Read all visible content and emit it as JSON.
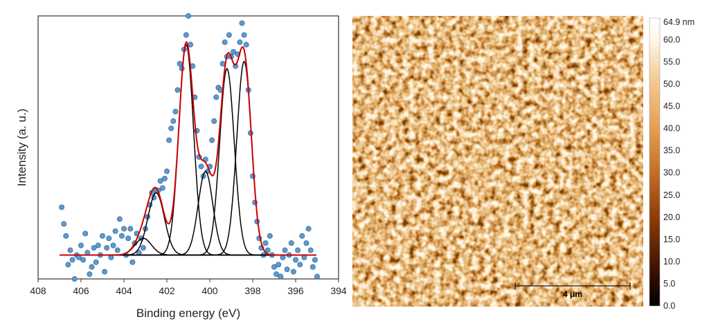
{
  "colors": {
    "raw_points_fill": "#5b9bd5",
    "raw_points_stroke": "#2e5f8a",
    "envelope": "#cc0000",
    "components": "#000000",
    "afm_base": "#b8641e"
  },
  "chart_data": [
    {
      "type": "scatter",
      "xlabel": "Binding energy (eV)",
      "ylabel": "Intensity (a. u.)",
      "xlim": [
        408,
        394
      ],
      "x_reversed": true,
      "ylim": [
        0,
        1.1
      ],
      "y_ticks_shown": false,
      "x_ticks": [
        "408",
        "406",
        "404",
        "402",
        "400",
        "398",
        "396",
        "394"
      ],
      "x_tick_values": [
        408,
        406,
        404,
        402,
        400,
        398,
        396,
        394
      ],
      "baseline": 0.1,
      "components": [
        {
          "center": 403.1,
          "height": 0.07,
          "fwhm": 0.9
        },
        {
          "center": 402.5,
          "height": 0.26,
          "fwhm": 0.9
        },
        {
          "center": 401.1,
          "height": 0.88,
          "fwhm": 0.8
        },
        {
          "center": 400.2,
          "height": 0.35,
          "fwhm": 0.8
        },
        {
          "center": 399.2,
          "height": 0.78,
          "fwhm": 0.8
        },
        {
          "center": 398.4,
          "height": 0.81,
          "fwhm": 0.8
        }
      ],
      "series": [
        {
          "values": [
            [
              406.9,
              0.3
            ],
            [
              406.8,
              0.23
            ],
            [
              406.7,
              0.18
            ],
            [
              406.6,
              0.06
            ],
            [
              406.5,
              0.12
            ],
            [
              406.4,
              0.08
            ],
            [
              406.3,
              0.0
            ],
            [
              406.2,
              0.1
            ],
            [
              406.1,
              0.09
            ],
            [
              406.0,
              0.14
            ],
            [
              405.9,
              0.08
            ],
            [
              405.8,
              0.19
            ],
            [
              405.7,
              0.11
            ],
            [
              405.6,
              0.02
            ],
            [
              405.5,
              0.05
            ],
            [
              405.4,
              0.13
            ],
            [
              405.3,
              0.07
            ],
            [
              405.2,
              0.14
            ],
            [
              405.1,
              0.1
            ],
            [
              405.0,
              0.18
            ],
            [
              404.9,
              0.03
            ],
            [
              404.8,
              0.13
            ],
            [
              404.7,
              0.17
            ],
            [
              404.6,
              0.09
            ],
            [
              404.5,
              0.14
            ],
            [
              404.4,
              0.2
            ],
            [
              404.3,
              0.12
            ],
            [
              404.2,
              0.25
            ],
            [
              404.1,
              0.18
            ],
            [
              404.0,
              0.21
            ],
            [
              403.9,
              0.1
            ],
            [
              403.8,
              0.17
            ],
            [
              403.7,
              0.21
            ],
            [
              403.6,
              0.07
            ],
            [
              403.5,
              0.15
            ],
            [
              403.4,
              0.19
            ],
            [
              403.3,
              0.11
            ],
            [
              403.2,
              0.17
            ],
            [
              403.1,
              0.13
            ],
            [
              403.0,
              0.21
            ],
            [
              402.9,
              0.26
            ],
            [
              402.8,
              0.31
            ],
            [
              402.7,
              0.36
            ],
            [
              402.6,
              0.34
            ],
            [
              402.5,
              0.37
            ],
            [
              402.4,
              0.37
            ],
            [
              402.3,
              0.41
            ],
            [
              402.2,
              0.38
            ],
            [
              402.1,
              0.42
            ],
            [
              402.0,
              0.45
            ],
            [
              401.9,
              0.58
            ],
            [
              401.8,
              0.63
            ],
            [
              401.7,
              0.66
            ],
            [
              401.6,
              0.7
            ],
            [
              401.5,
              0.79
            ],
            [
              401.4,
              0.9
            ],
            [
              401.3,
              0.88
            ],
            [
              401.2,
              0.96
            ],
            [
              401.1,
              1.02
            ],
            [
              401.0,
              1.1
            ],
            [
              400.9,
              0.98
            ],
            [
              400.8,
              0.89
            ],
            [
              400.7,
              0.76
            ],
            [
              400.6,
              0.62
            ],
            [
              400.5,
              0.51
            ],
            [
              400.4,
              0.47
            ],
            [
              400.3,
              0.43
            ],
            [
              400.2,
              0.5
            ],
            [
              400.1,
              0.45
            ],
            [
              400.0,
              0.47
            ],
            [
              399.9,
              0.58
            ],
            [
              399.8,
              0.66
            ],
            [
              399.7,
              0.76
            ],
            [
              399.6,
              0.8
            ],
            [
              399.5,
              0.79
            ],
            [
              399.4,
              0.9
            ],
            [
              399.3,
              0.99
            ],
            [
              399.2,
              0.93
            ],
            [
              399.1,
              1.02
            ],
            [
              399.0,
              0.93
            ],
            [
              398.9,
              0.95
            ],
            [
              398.8,
              0.89
            ],
            [
              398.7,
              0.94
            ],
            [
              398.6,
              0.99
            ],
            [
              398.5,
              1.07
            ],
            [
              398.4,
              1.02
            ],
            [
              398.3,
              0.98
            ],
            [
              398.2,
              0.79
            ],
            [
              398.1,
              0.61
            ],
            [
              398.0,
              0.43
            ],
            [
              397.9,
              0.32
            ],
            [
              397.8,
              0.24
            ],
            [
              397.7,
              0.17
            ],
            [
              397.6,
              0.13
            ],
            [
              397.5,
              0.1
            ],
            [
              397.4,
              0.15
            ],
            [
              397.3,
              0.12
            ],
            [
              397.2,
              0.18
            ],
            [
              397.1,
              0.1
            ],
            [
              397.0,
              0.05
            ],
            [
              396.9,
              0.02
            ],
            [
              396.8,
              0.06
            ],
            [
              396.7,
              0.01
            ],
            [
              396.6,
              0.09
            ],
            [
              396.5,
              0.12
            ],
            [
              396.4,
              0.04
            ],
            [
              396.3,
              0.1
            ],
            [
              396.2,
              0.15
            ],
            [
              396.1,
              0.03
            ],
            [
              396.0,
              0.08
            ],
            [
              395.9,
              0.12
            ],
            [
              395.8,
              0.06
            ],
            [
              395.7,
              0.18
            ],
            [
              395.6,
              0.09
            ],
            [
              395.5,
              0.15
            ],
            [
              395.4,
              0.21
            ],
            [
              395.3,
              0.12
            ],
            [
              395.2,
              0.05
            ],
            [
              395.1,
              0.08
            ],
            [
              395.0,
              0.01
            ]
          ]
        }
      ]
    },
    {
      "type": "heatmap",
      "colorbar_title": "64.9 nm",
      "colorbar_ticks": [
        "60.0",
        "55.0",
        "50.0",
        "45.0",
        "40.0",
        "35.0",
        "30.0",
        "25.0",
        "20.0",
        "15.0",
        "10.0",
        "5.0",
        "0.0"
      ],
      "colorbar_tick_values": [
        60,
        55,
        50,
        45,
        40,
        35,
        30,
        25,
        20,
        15,
        10,
        5,
        0
      ],
      "zlim": [
        0,
        64.9
      ],
      "scale_bar": "4 μm",
      "colormap": [
        "#000000",
        "#3b1000",
        "#8a3a08",
        "#c06a24",
        "#e29a4d",
        "#f4c98f",
        "#fff5e6",
        "#ffffff"
      ]
    }
  ]
}
